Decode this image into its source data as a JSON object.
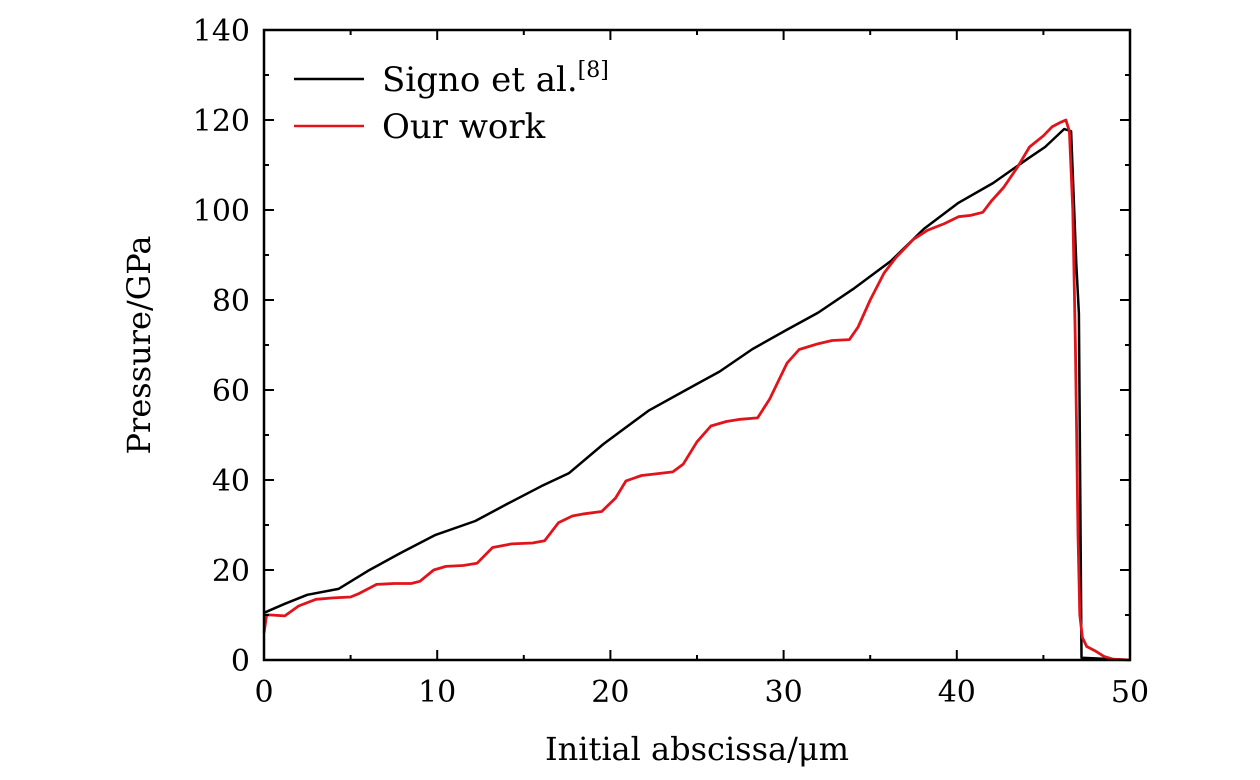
{
  "chart_data": {
    "type": "line",
    "xlabel": "Initial abscissa/μm",
    "ylabel": "Pressure/GPa",
    "xlim": [
      0,
      50
    ],
    "ylim": [
      0,
      140
    ],
    "x_ticks": [
      0,
      10,
      20,
      30,
      40,
      50
    ],
    "y_ticks": [
      0,
      20,
      40,
      60,
      80,
      100,
      120,
      140
    ],
    "x_tick_labels": [
      "0",
      "10",
      "20",
      "30",
      "40",
      "50"
    ],
    "y_tick_labels": [
      "0",
      "20",
      "40",
      "60",
      "80",
      "100",
      "120",
      "140"
    ],
    "grid": false,
    "legend_position": "top-left",
    "series": [
      {
        "name": "Signo et al.",
        "name_superscript": "[8]",
        "color": "#000000",
        "x": [
          0,
          1.2,
          2.5,
          4.3,
          6.0,
          7.9,
          9.9,
          12.2,
          14.1,
          16.0,
          17.6,
          19.6,
          22.2,
          24.4,
          26.3,
          28.2,
          30.1,
          32.0,
          34.0,
          36.2,
          38.1,
          40.1,
          42.1,
          44.1,
          45.1,
          46.2,
          46.6,
          46.9,
          47.05,
          47.2,
          50
        ],
        "y": [
          10.5,
          12.5,
          14.5,
          15.8,
          19.8,
          23.8,
          27.8,
          30.9,
          34.8,
          38.6,
          41.5,
          48.0,
          55.4,
          60.1,
          64.1,
          69.1,
          73.2,
          77.2,
          82.4,
          88.7,
          95.8,
          101.6,
          106.0,
          111.4,
          114.0,
          118.0,
          117.5,
          88.0,
          77.0,
          0.5,
          0
        ]
      },
      {
        "name": "Our work",
        "color": "#e1141b",
        "x": [
          0,
          0.15,
          0.4,
          1.2,
          2.0,
          3.0,
          4.0,
          5.0,
          5.5,
          6.5,
          7.5,
          8.5,
          9.0,
          9.8,
          10.5,
          11.5,
          12.3,
          13.2,
          14.3,
          15.5,
          16.2,
          17.0,
          17.8,
          18.5,
          19.5,
          20.3,
          20.9,
          21.8,
          22.5,
          23.6,
          24.2,
          25.0,
          25.8,
          26.7,
          27.5,
          28.5,
          29.2,
          30.2,
          30.9,
          32.0,
          32.8,
          33.8,
          34.3,
          35.0,
          35.8,
          36.5,
          37.5,
          38.3,
          39.3,
          40.1,
          40.8,
          41.5,
          42.0,
          42.7,
          43.5,
          44.2,
          45.0,
          45.5,
          46.0,
          46.3,
          46.5,
          46.7,
          46.85,
          47.0,
          47.1,
          47.25,
          47.5,
          48.0,
          48.5,
          49.0,
          50
        ],
        "y": [
          6,
          10,
          10,
          9.8,
          12.0,
          13.5,
          13.8,
          14.0,
          14.8,
          16.8,
          17.0,
          17.0,
          17.5,
          20.0,
          20.8,
          21.0,
          21.5,
          25.0,
          25.8,
          26.0,
          26.5,
          30.5,
          32.0,
          32.5,
          33.0,
          36.0,
          39.8,
          41.0,
          41.3,
          41.8,
          43.5,
          48.5,
          52.0,
          53.0,
          53.5,
          53.8,
          58.0,
          66.0,
          69.0,
          70.3,
          71.0,
          71.2,
          74.0,
          80.0,
          86.0,
          89.5,
          93.5,
          95.5,
          97.0,
          98.5,
          98.8,
          99.5,
          102.0,
          105.0,
          109.5,
          114.0,
          116.5,
          118.5,
          119.5,
          120.0,
          117.5,
          100.0,
          70.0,
          28.0,
          10.0,
          5.0,
          3.0,
          2.0,
          0.8,
          0.2,
          0
        ]
      }
    ]
  }
}
